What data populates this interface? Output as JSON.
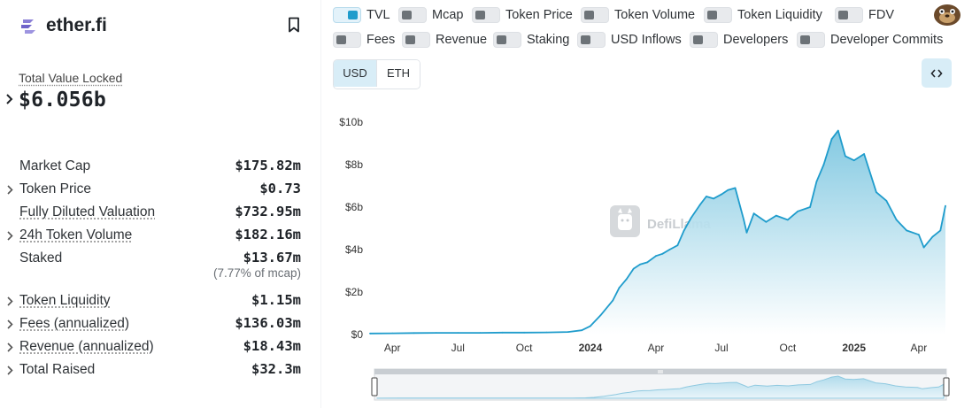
{
  "protocol": {
    "name": "ether.fi"
  },
  "tvl": {
    "label": "Total Value Locked",
    "value": "$6.056b"
  },
  "metrics": [
    {
      "label": "Market Cap",
      "value": "$175.82m",
      "chevron": false,
      "dotted": false
    },
    {
      "label": "Token Price",
      "value": "$0.73",
      "chevron": true,
      "dotted": false
    },
    {
      "label": "Fully Diluted Valuation",
      "value": "$732.95m",
      "chevron": false,
      "dotted": true
    },
    {
      "label": "24h Token Volume",
      "value": "$182.16m",
      "chevron": true,
      "dotted": true
    },
    {
      "label": "Staked",
      "value": "$13.67m",
      "chevron": false,
      "dotted": false,
      "sub": "(7.77% of mcap)"
    },
    {
      "label": "Token Liquidity",
      "value": "$1.15m",
      "chevron": true,
      "dotted": true
    },
    {
      "label": "Fees (annualized)",
      "value": "$136.03m",
      "chevron": true,
      "dotted": true
    },
    {
      "label": "Revenue (annualized)",
      "value": "$18.43m",
      "chevron": true,
      "dotted": true
    },
    {
      "label": "Total Raised",
      "value": "$32.3m",
      "chevron": true,
      "dotted": false
    }
  ],
  "toggles": [
    {
      "label": "TVL",
      "on": true
    },
    {
      "label": "Mcap",
      "on": false
    },
    {
      "label": "Token Price",
      "on": false
    },
    {
      "label": "Token Volume",
      "on": false
    },
    {
      "label": "Token Liquidity",
      "on": false
    },
    {
      "label": "FDV",
      "on": false
    },
    {
      "label": "Fees",
      "on": false
    },
    {
      "label": "Revenue",
      "on": false
    },
    {
      "label": "Staking",
      "on": false
    },
    {
      "label": "USD Inflows",
      "on": false
    },
    {
      "label": "Developers",
      "on": false
    },
    {
      "label": "Developer Commits",
      "on": false
    }
  ],
  "currency": {
    "options": [
      "USD",
      "ETH"
    ],
    "selected": "USD"
  },
  "watermark": "DefiLlama",
  "colors": {
    "accent": "#1f9ccc",
    "line": "#1f9ccc",
    "area_top": "#7cc6e0",
    "area_bottom": "#ffffff"
  },
  "icons": {
    "logo": "ether-fi-logo-icon",
    "bookmark": "bookmark-icon",
    "embed": "code-brackets-icon",
    "avatar": "user-avatar-icon"
  },
  "chart_data": {
    "type": "area",
    "series": [
      {
        "name": "TVL",
        "x": [
          "2023-03-01",
          "2023-04-01",
          "2023-05-01",
          "2023-06-01",
          "2023-07-01",
          "2023-08-01",
          "2023-09-01",
          "2023-10-01",
          "2023-11-01",
          "2023-12-01",
          "2023-12-20",
          "2024-01-01",
          "2024-01-15",
          "2024-02-01",
          "2024-02-10",
          "2024-02-20",
          "2024-03-01",
          "2024-03-10",
          "2024-03-20",
          "2024-04-01",
          "2024-04-10",
          "2024-04-20",
          "2024-05-01",
          "2024-05-10",
          "2024-05-20",
          "2024-06-01",
          "2024-06-10",
          "2024-06-20",
          "2024-07-01",
          "2024-07-10",
          "2024-07-20",
          "2024-08-01",
          "2024-08-05",
          "2024-08-15",
          "2024-09-01",
          "2024-09-15",
          "2024-10-01",
          "2024-10-15",
          "2024-11-01",
          "2024-11-10",
          "2024-11-20",
          "2024-12-01",
          "2024-12-10",
          "2024-12-20",
          "2025-01-01",
          "2025-01-15",
          "2025-02-01",
          "2025-02-15",
          "2025-03-01",
          "2025-03-15",
          "2025-04-01",
          "2025-04-08",
          "2025-04-20",
          "2025-05-01",
          "2025-05-08"
        ],
        "y": [
          0.05,
          0.06,
          0.07,
          0.08,
          0.08,
          0.08,
          0.09,
          0.09,
          0.1,
          0.12,
          0.2,
          0.4,
          0.9,
          1.6,
          2.2,
          2.6,
          3.1,
          3.3,
          3.4,
          3.7,
          3.8,
          4.0,
          4.2,
          4.9,
          5.5,
          6.1,
          6.5,
          6.4,
          6.6,
          6.8,
          6.9,
          5.4,
          4.8,
          5.7,
          5.3,
          5.6,
          5.4,
          5.8,
          6.0,
          7.2,
          8.0,
          9.2,
          9.6,
          8.4,
          8.2,
          8.5,
          6.7,
          6.3,
          5.4,
          4.9,
          4.7,
          4.1,
          4.6,
          4.9,
          6.06
        ]
      }
    ],
    "xlabel": "",
    "ylabel": "",
    "x_ticks": [
      {
        "date": "2023-04-01",
        "label": "Apr",
        "bold": false
      },
      {
        "date": "2023-07-01",
        "label": "Jul",
        "bold": false
      },
      {
        "date": "2023-10-01",
        "label": "Oct",
        "bold": false
      },
      {
        "date": "2024-01-01",
        "label": "2024",
        "bold": true
      },
      {
        "date": "2024-04-01",
        "label": "Apr",
        "bold": false
      },
      {
        "date": "2024-07-01",
        "label": "Jul",
        "bold": false
      },
      {
        "date": "2024-10-01",
        "label": "Oct",
        "bold": false
      },
      {
        "date": "2025-01-01",
        "label": "2025",
        "bold": true
      },
      {
        "date": "2025-04-01",
        "label": "Apr",
        "bold": false
      }
    ],
    "y_ticks": [
      {
        "value": 0,
        "label": "$0"
      },
      {
        "value": 2,
        "label": "$2b"
      },
      {
        "value": 4,
        "label": "$4b"
      },
      {
        "value": 6,
        "label": "$6b"
      },
      {
        "value": 8,
        "label": "$8b"
      },
      {
        "value": 10,
        "label": "$10b"
      }
    ],
    "y_unit": "billions USD",
    "xlim": [
      "2023-03-01",
      "2025-05-08"
    ],
    "ylim": [
      0,
      10
    ],
    "grid": false,
    "legend": "none"
  }
}
